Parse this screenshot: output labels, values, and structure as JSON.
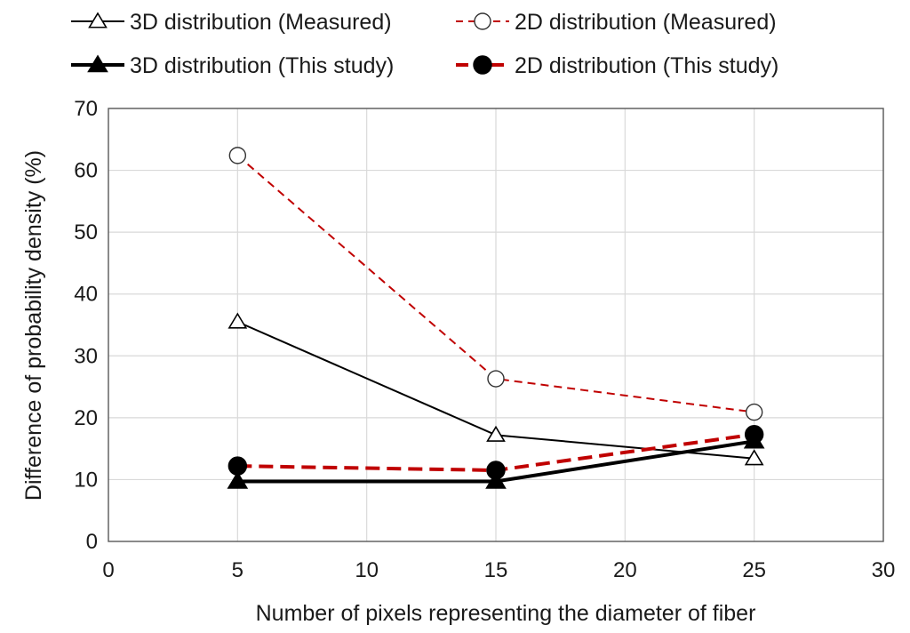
{
  "chart_data": {
    "type": "line",
    "title": "",
    "xlabel": "Number of pixels representing the diameter of fiber",
    "ylabel": "Difference of probability density (%)",
    "xlim": [
      0,
      30
    ],
    "ylim": [
      0,
      70
    ],
    "xticks": [
      0,
      5,
      10,
      15,
      20,
      25,
      30
    ],
    "yticks": [
      0,
      10,
      20,
      30,
      40,
      50,
      60,
      70
    ],
    "grid": true,
    "legend_position": "top",
    "x": [
      5,
      15,
      25
    ],
    "series": [
      {
        "name": "3D distribution (Measured)",
        "values": [
          35.5,
          17.2,
          13.4
        ],
        "color": "#000000",
        "line_style": "solid",
        "line_weight": "thin",
        "marker": "triangle-open"
      },
      {
        "name": "2D distribution (Measured)",
        "values": [
          62.4,
          26.3,
          20.9
        ],
        "color": "#c00000",
        "line_style": "dashed",
        "line_weight": "thin",
        "marker": "circle-open"
      },
      {
        "name": "3D distribution (This study)",
        "values": [
          9.7,
          9.7,
          16.2
        ],
        "color": "#000000",
        "line_style": "solid",
        "line_weight": "thick",
        "marker": "triangle-filled"
      },
      {
        "name": "2D distribution (This study)",
        "values": [
          12.2,
          11.5,
          17.3
        ],
        "color": "#c00000",
        "line_style": "dashed",
        "line_weight": "thick",
        "marker": "circle-filled"
      }
    ]
  },
  "colors": {
    "grid": "#d9d9d9",
    "axis": "#595959",
    "marker_fill_dark": "#000000"
  }
}
